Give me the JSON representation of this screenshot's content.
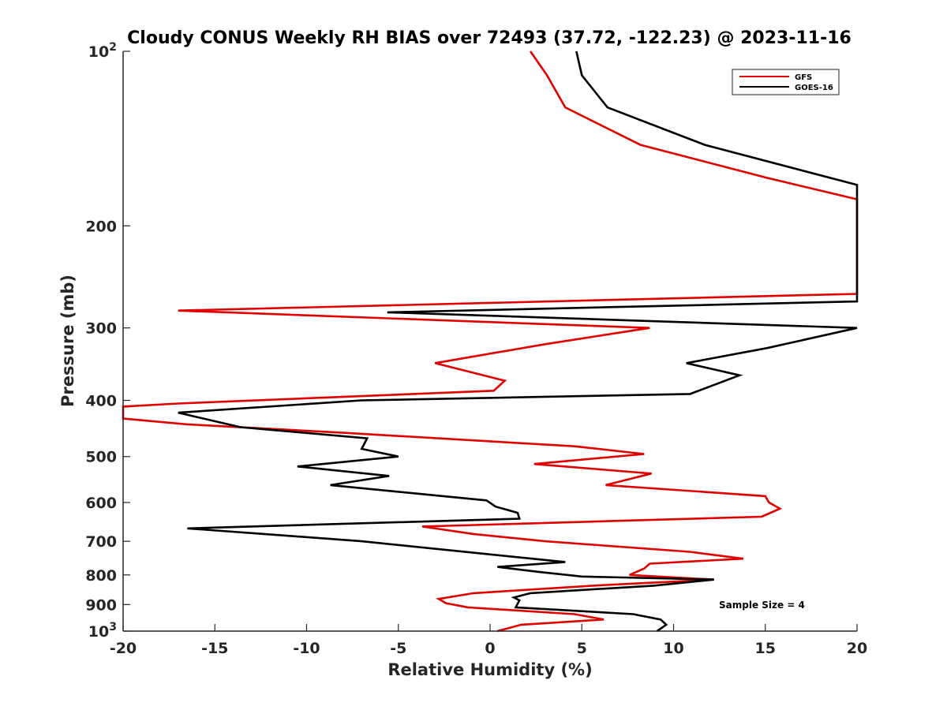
{
  "chart_data": {
    "type": "line",
    "title": "Cloudy CONUS Weekly RH BIAS over 72493 (37.72, -122.23) @ 2023-11-16",
    "xlabel": "Relative Humidity (%)",
    "ylabel": "Pressure (mb)",
    "xlim": [
      -20,
      20
    ],
    "ylim": [
      100,
      1000
    ],
    "y_scale": "log",
    "y_reversed": true,
    "grid": false,
    "legend_position": "top-right",
    "x_ticks": [
      "-20",
      "-15",
      "-10",
      "-5",
      "0",
      "5",
      "10",
      "15",
      "20"
    ],
    "y_ticks": [
      {
        "value": 100,
        "base": "10",
        "exp": "2"
      },
      {
        "value": 200,
        "label": "200"
      },
      {
        "value": 300,
        "label": "300"
      },
      {
        "value": 400,
        "label": "400"
      },
      {
        "value": 500,
        "label": "500"
      },
      {
        "value": 600,
        "label": "600"
      },
      {
        "value": 700,
        "label": "700"
      },
      {
        "value": 800,
        "label": "800"
      },
      {
        "value": 900,
        "label": "900"
      },
      {
        "value": 1000,
        "base": "10",
        "exp": "3"
      }
    ],
    "annotation": "Sample Size = 4",
    "series": [
      {
        "name": "GFS",
        "color": "#e00000",
        "points": [
          [
            2.2,
            100
          ],
          [
            3.1,
            110
          ],
          [
            4.1,
            125
          ],
          [
            8.2,
            145
          ],
          [
            15,
            165
          ],
          [
            20,
            180
          ],
          [
            20,
            262
          ],
          [
            -17,
            280
          ],
          [
            8.7,
            300
          ],
          [
            3,
            320
          ],
          [
            -3,
            345
          ],
          [
            0.8,
            370
          ],
          [
            0.2,
            385
          ],
          [
            -17,
            405
          ],
          [
            -20,
            410
          ],
          [
            -20,
            430
          ],
          [
            -16.5,
            440
          ],
          [
            -8,
            455
          ],
          [
            4.6,
            480
          ],
          [
            8.4,
            495
          ],
          [
            2.4,
            515
          ],
          [
            8.8,
            535
          ],
          [
            6.3,
            560
          ],
          [
            15,
            585
          ],
          [
            15.2,
            600
          ],
          [
            15.8,
            615
          ],
          [
            14.8,
            635
          ],
          [
            -3.7,
            660
          ],
          [
            -0.9,
            680
          ],
          [
            3,
            700
          ],
          [
            10.9,
            730
          ],
          [
            13.8,
            750
          ],
          [
            8.7,
            765
          ],
          [
            8.4,
            780
          ],
          [
            7.6,
            800
          ],
          [
            12.2,
            815
          ],
          [
            5.6,
            835
          ],
          [
            -0.9,
            860
          ],
          [
            -2.8,
            880
          ],
          [
            -2.4,
            895
          ],
          [
            -1.2,
            910
          ],
          [
            4.6,
            935
          ],
          [
            6.2,
            955
          ],
          [
            1.7,
            975
          ],
          [
            0.4,
            1000
          ]
        ]
      },
      {
        "name": "GOES-16",
        "color": "#000000",
        "points": [
          [
            4.7,
            100
          ],
          [
            5,
            110
          ],
          [
            6.4,
            125
          ],
          [
            11.7,
            145
          ],
          [
            20,
            170
          ],
          [
            20,
            270
          ],
          [
            -5.6,
            282
          ],
          [
            20,
            300
          ],
          [
            15.1,
            325
          ],
          [
            10.7,
            345
          ],
          [
            13.6,
            362
          ],
          [
            10.9,
            390
          ],
          [
            -7,
            400
          ],
          [
            -17,
            420
          ],
          [
            -13.6,
            445
          ],
          [
            -6.7,
            465
          ],
          [
            -7,
            485
          ],
          [
            -5,
            500
          ],
          [
            -10.5,
            520
          ],
          [
            -5.5,
            540
          ],
          [
            -8.7,
            560
          ],
          [
            -0.2,
            595
          ],
          [
            0.3,
            610
          ],
          [
            1.5,
            625
          ],
          [
            1.6,
            640
          ],
          [
            -16.5,
            665
          ],
          [
            -12.3,
            680
          ],
          [
            -7,
            700
          ],
          [
            0.5,
            740
          ],
          [
            4.1,
            760
          ],
          [
            0.4,
            775
          ],
          [
            2.6,
            790
          ],
          [
            5,
            805
          ],
          [
            12.2,
            815
          ],
          [
            8.9,
            835
          ],
          [
            2.2,
            860
          ],
          [
            1.3,
            875
          ],
          [
            1.6,
            885
          ],
          [
            1.4,
            910
          ],
          [
            7.8,
            935
          ],
          [
            9.3,
            955
          ],
          [
            9.6,
            975
          ],
          [
            9.1,
            1000
          ]
        ]
      }
    ]
  }
}
